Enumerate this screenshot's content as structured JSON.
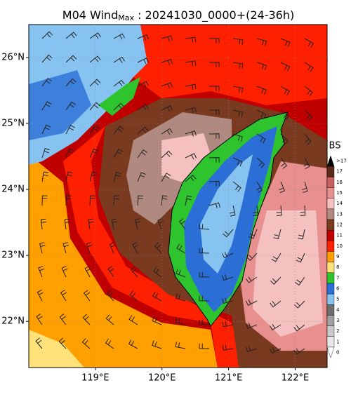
{
  "title": {
    "main": "M04 Wind",
    "subscript": "Max",
    "suffix": " : 20241030_0000+(24-36h)"
  },
  "map": {
    "lon_range": [
      118.0,
      122.48
    ],
    "lat_range": [
      21.3,
      26.5
    ],
    "lon_ticks": [
      {
        "value": 119,
        "label": "119°E"
      },
      {
        "value": 120,
        "label": "120°E"
      },
      {
        "value": 121,
        "label": "121°E"
      },
      {
        "value": 122,
        "label": "122°E"
      }
    ],
    "lat_ticks": [
      {
        "value": 22,
        "label": "22°N"
      },
      {
        "value": 23,
        "label": "23°N"
      },
      {
        "value": 24,
        "label": "24°N"
      },
      {
        "value": 25,
        "label": "25°N"
      },
      {
        "value": 26,
        "label": "26°N"
      }
    ]
  },
  "colorbar": {
    "label": "BS",
    "levels": [
      {
        "label": "0",
        "color": "#ffffff"
      },
      {
        "label": "1",
        "color": "#e6e6e6"
      },
      {
        "label": "2",
        "color": "#c8c8c8"
      },
      {
        "label": "3",
        "color": "#a0a0a0"
      },
      {
        "label": "4",
        "color": "#6e6e6e"
      },
      {
        "label": "5",
        "color": "#87c3f0"
      },
      {
        "label": "6",
        "color": "#2b6fd6"
      },
      {
        "label": "7",
        "color": "#2ec42e"
      },
      {
        "label": "8",
        "color": "#ffe27a"
      },
      {
        "label": "9",
        "color": "#ff9f00"
      },
      {
        "label": "10",
        "color": "#ff2000"
      },
      {
        "label": "11",
        "color": "#c00000"
      },
      {
        "label": "12",
        "color": "#7a3a20"
      },
      {
        "label": "13",
        "color": "#b08a80"
      },
      {
        "label": "14",
        "color": "#f4c0c0"
      },
      {
        "label": "15",
        "color": "#e89090"
      },
      {
        "label": "16",
        "color": "#c86060"
      },
      {
        "label": "17",
        "color": "#5a2a1a"
      },
      {
        "label": ">17",
        "color": "#000000"
      }
    ]
  }
}
